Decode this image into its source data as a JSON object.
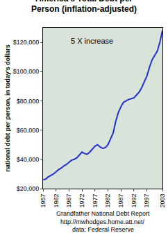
{
  "chart_data": {
    "type": "line",
    "title": "America's Total Debt per\nPerson (inflation-adjusted)",
    "y_label": "national debt per person, in today's dollars",
    "annotation": "5 X increase",
    "notes": [
      "Grandfather National Debt Report",
      "http://mwhodges.home.att.net/",
      "data: Federal Reserve"
    ],
    "x": [
      1957,
      1958,
      1959,
      1960,
      1961,
      1962,
      1963,
      1964,
      1965,
      1966,
      1967,
      1968,
      1969,
      1970,
      1971,
      1972,
      1973,
      1974,
      1975,
      1976,
      1977,
      1978,
      1979,
      1980,
      1981,
      1982,
      1983,
      1984,
      1985,
      1986,
      1987,
      1988,
      1989,
      1990,
      1991,
      1992,
      1993,
      1994,
      1995,
      1996,
      1997,
      1998,
      1999,
      2000,
      2001,
      2002,
      2003
    ],
    "values": [
      26000,
      26500,
      28000,
      29000,
      30000,
      31500,
      33000,
      34000,
      35500,
      36500,
      38000,
      39500,
      40000,
      41000,
      43000,
      45000,
      44000,
      43500,
      45000,
      47000,
      49000,
      50000,
      48500,
      47500,
      48000,
      50000,
      54000,
      58000,
      66000,
      72000,
      76000,
      79000,
      80000,
      81000,
      81500,
      82000,
      84000,
      86000,
      89000,
      93000,
      97000,
      103000,
      108000,
      111000,
      114000,
      120000,
      128000
    ],
    "color": "#1f2fd0",
    "xlim": [
      1957,
      2003
    ],
    "xticks": [
      1957,
      1962,
      1967,
      1972,
      1977,
      1982,
      1987,
      1992,
      1997,
      2003
    ],
    "ylim": [
      20000,
      130000
    ],
    "yticks": [
      {
        "value": 20000,
        "label": "$20,000"
      },
      {
        "value": 40000,
        "label": "$40,000"
      },
      {
        "value": 60000,
        "label": "$60,000"
      },
      {
        "value": 80000,
        "label": "$80,000"
      },
      {
        "value": 100000,
        "label": "$100,000"
      },
      {
        "value": 120000,
        "label": "$120,000"
      }
    ],
    "grid": false
  }
}
